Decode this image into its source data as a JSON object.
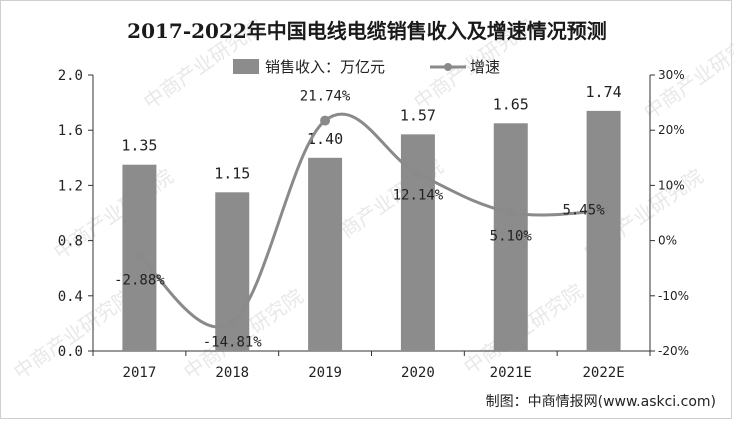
{
  "chart_data": {
    "type": "bar",
    "title": "2017-2022年中国电线电缆销售收入及增速情况预测",
    "categories": [
      "2017",
      "2018",
      "2019",
      "2020",
      "2021E",
      "2022E"
    ],
    "series": [
      {
        "name": "销售收入：万亿元",
        "type": "bar",
        "axis": "left",
        "values": [
          1.35,
          1.15,
          1.4,
          1.57,
          1.65,
          1.74
        ],
        "labels": [
          "1.35",
          "1.15",
          "1.40",
          "1.57",
          "1.65",
          "1.74"
        ]
      },
      {
        "name": "增速",
        "type": "line",
        "axis": "right",
        "values": [
          -2.88,
          -14.81,
          21.74,
          12.14,
          5.1,
          5.45
        ],
        "labels": [
          "-2.88%",
          "-14.81%",
          "21.74%",
          "12.14%",
          "5.10%",
          "5.45%"
        ]
      }
    ],
    "y_left": {
      "ylim": [
        0,
        2.0
      ],
      "ticks": [
        "0.0",
        "0.4",
        "0.8",
        "1.2",
        "1.6",
        "2.0"
      ]
    },
    "y_right": {
      "ylim": [
        -20,
        30
      ],
      "ticks": [
        "-20%",
        "-10%",
        "0%",
        "10%",
        "20%",
        "30%"
      ]
    },
    "legend_position": "top-center",
    "grid": false,
    "bar_color": "#8c8c8c",
    "line_color": "#8a8a8a"
  },
  "source": "制图：中商情报网(www.askci.com)",
  "watermark": "中商产业研究院"
}
